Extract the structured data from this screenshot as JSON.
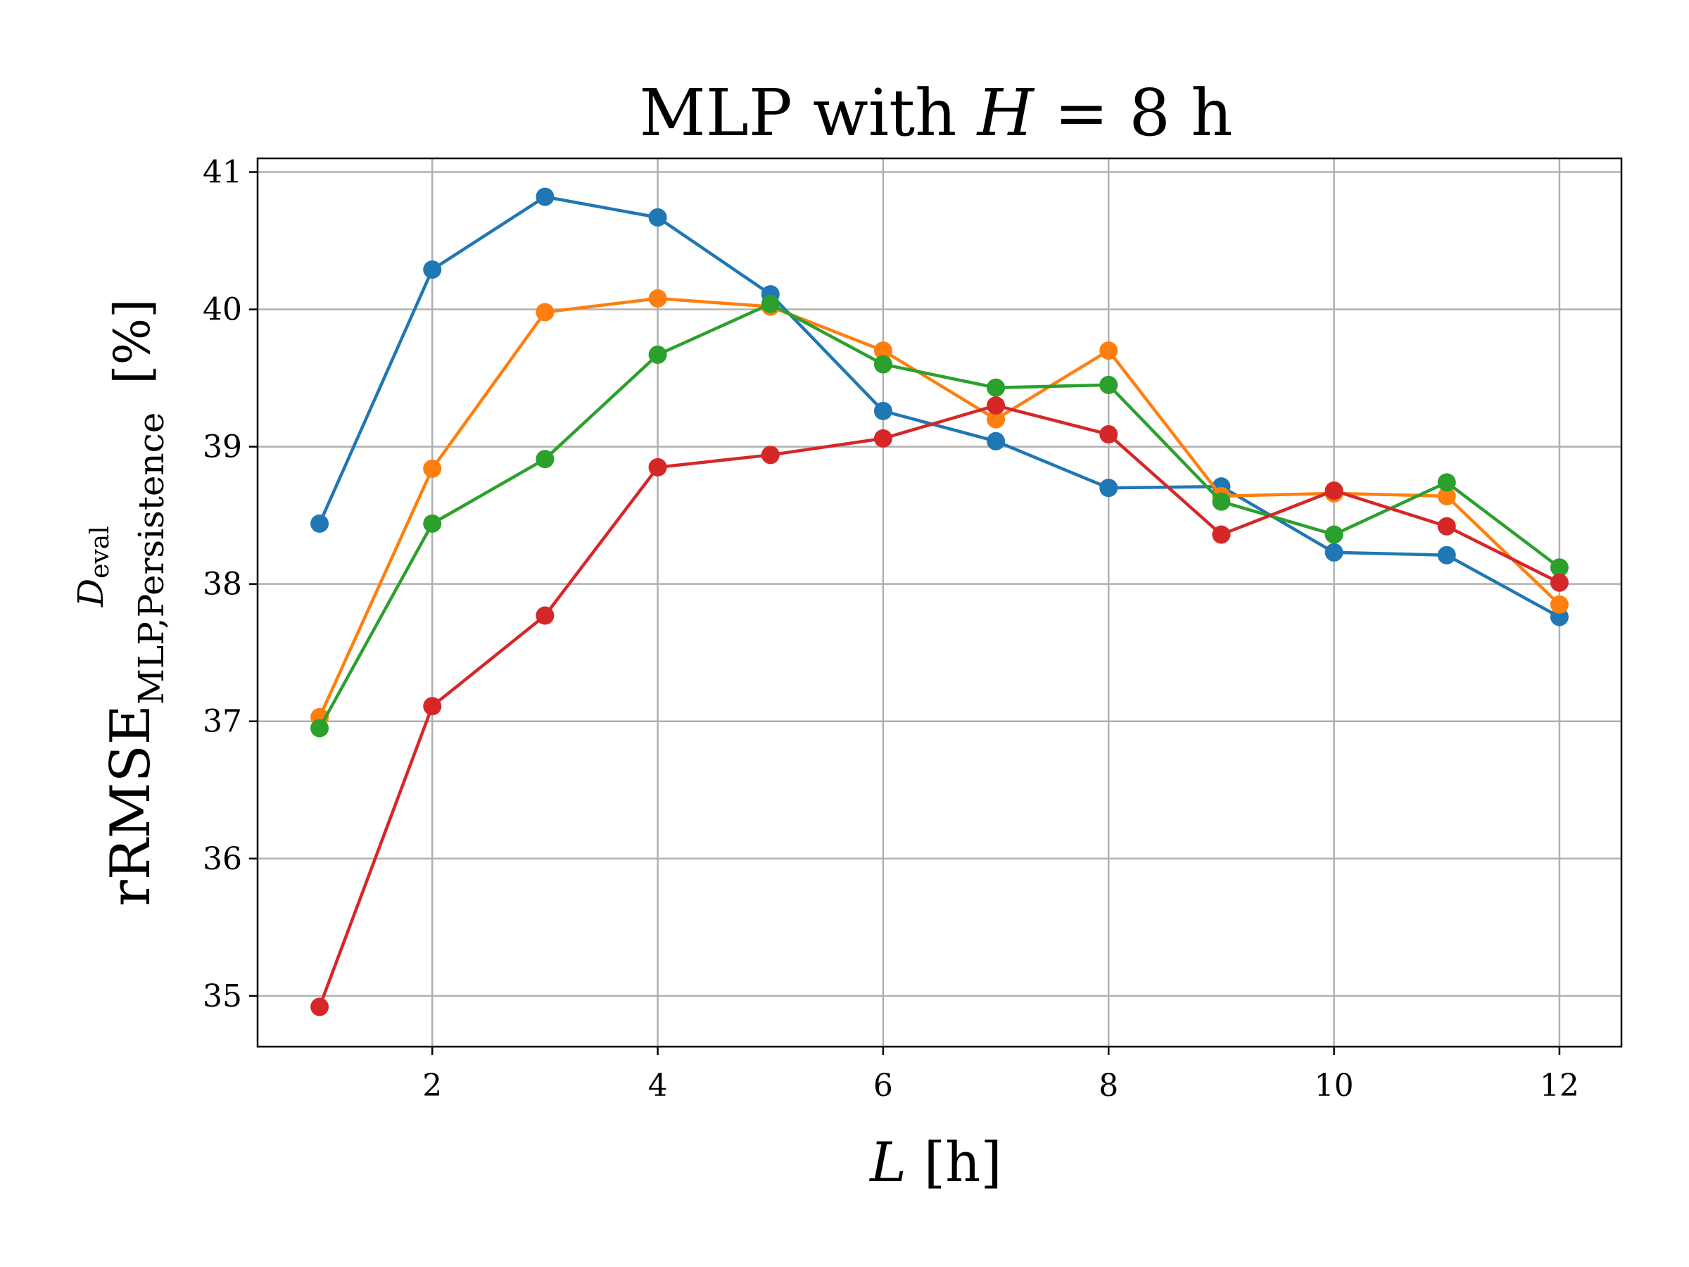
{
  "chart_data": {
    "type": "line",
    "title": "MLP with H = 8 h",
    "title_parts": {
      "prefix": "MLP with ",
      "var": "H",
      "suffix": " = 8 h"
    },
    "xlabel": "L [h]",
    "xlabel_parts": {
      "var": "L",
      "unit": " [h]"
    },
    "ylabel": "rRMSE_{MLP,Persistence}^{D_eval} [%]",
    "ylabel_parts": {
      "base": "rRMSE",
      "sup_var": "D",
      "sup_sub": "eval",
      "sub": "MLP,Persistence",
      "unit": "[%]"
    },
    "x": [
      1,
      2,
      3,
      4,
      5,
      6,
      7,
      8,
      9,
      10,
      11,
      12
    ],
    "xticks": [
      2,
      4,
      6,
      8,
      10,
      12
    ],
    "yticks": [
      35,
      36,
      37,
      38,
      39,
      40,
      41
    ],
    "xlim": [
      0.45,
      12.55
    ],
    "ylim": [
      34.63,
      41.1
    ],
    "grid": true,
    "series": [
      {
        "color": "#1f77b4",
        "values": [
          38.44,
          40.29,
          40.82,
          40.67,
          40.11,
          39.26,
          39.04,
          38.7,
          38.71,
          38.23,
          38.21,
          37.76
        ]
      },
      {
        "color": "#ff7f0e",
        "values": [
          37.03,
          38.84,
          39.98,
          40.08,
          40.02,
          39.7,
          39.2,
          39.7,
          38.64,
          38.66,
          38.64,
          37.85
        ]
      },
      {
        "color": "#2ca02c",
        "values": [
          36.95,
          38.44,
          38.91,
          39.67,
          40.04,
          39.6,
          39.43,
          39.45,
          38.6,
          38.36,
          38.74,
          38.12
        ]
      },
      {
        "color": "#d62728",
        "values": [
          34.92,
          37.11,
          37.77,
          38.85,
          38.94,
          39.06,
          39.3,
          39.09,
          38.36,
          38.68,
          38.42,
          38.01
        ]
      }
    ]
  }
}
